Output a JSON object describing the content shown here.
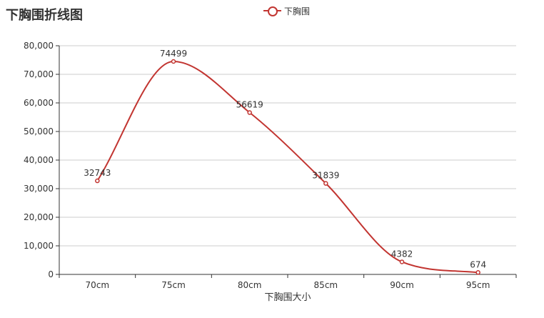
{
  "chart_data": {
    "type": "line",
    "title": "下胸围折线图",
    "categories": [
      "70cm",
      "75cm",
      "80cm",
      "85cm",
      "90cm",
      "95cm"
    ],
    "series": [
      {
        "name": "下胸围",
        "values": [
          32743,
          74499,
          56619,
          31839,
          4382,
          674
        ],
        "color": "#c23531",
        "smooth": true,
        "symbol": "empty-circle"
      }
    ],
    "xlabel": "下胸围大小",
    "ylabel": "",
    "ylim": [
      0,
      80000
    ],
    "yticks": [
      0,
      10000,
      20000,
      30000,
      40000,
      50000,
      60000,
      70000,
      80000
    ],
    "ytick_labels": [
      "0",
      "10,000",
      "20,000",
      "30,000",
      "40,000",
      "50,000",
      "60,000",
      "70,000",
      "80,000"
    ],
    "legend_position": "top-center",
    "grid": true,
    "data_labels": true
  },
  "colors": {
    "series": "#c23531",
    "axis": "#333333",
    "grid": "#cccccc",
    "text": "#333333"
  }
}
